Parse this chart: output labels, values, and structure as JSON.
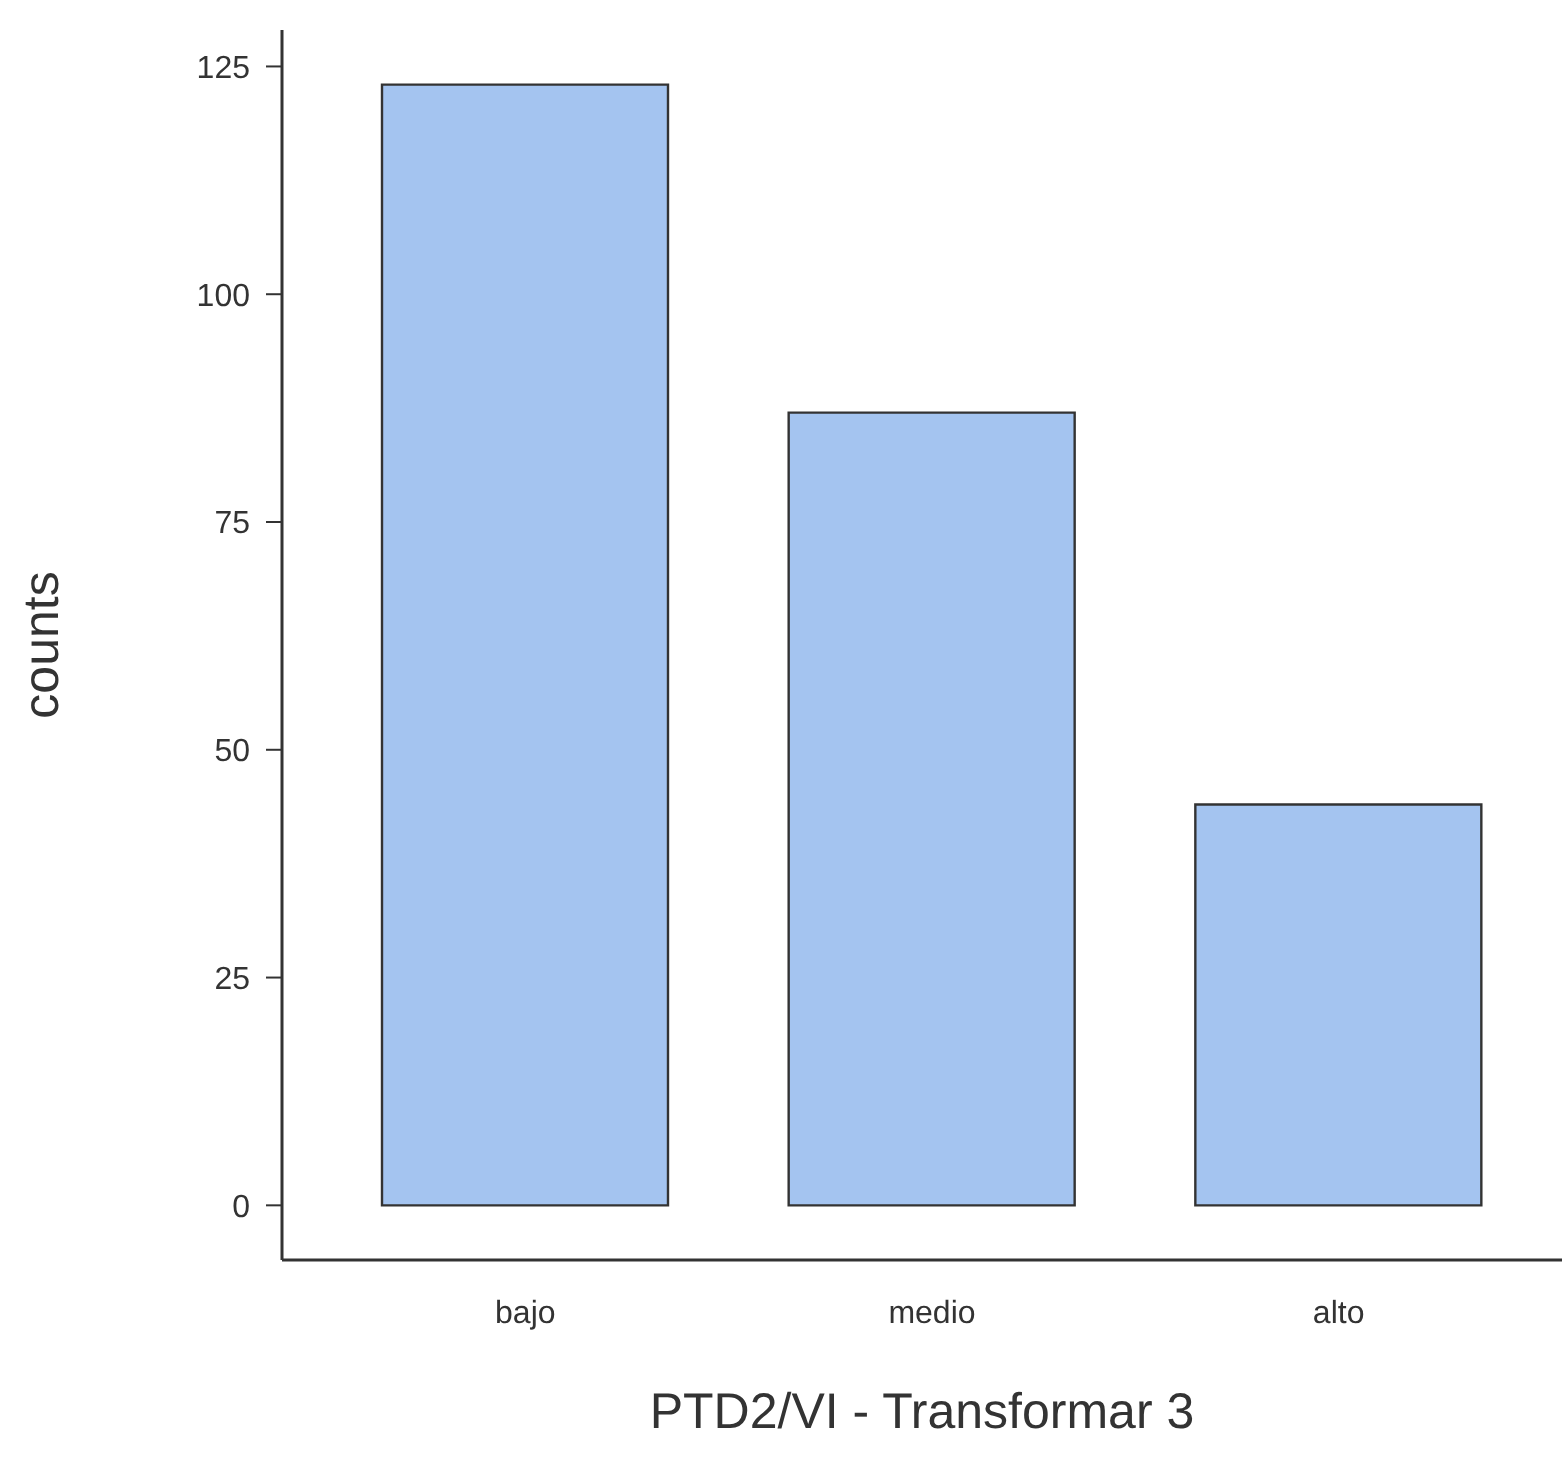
{
  "chart_data": {
    "type": "bar",
    "xlabel": "PTD2/VI - Transformar 3",
    "ylabel": "counts",
    "categories": [
      "bajo",
      "medio",
      "alto"
    ],
    "values": [
      123,
      87,
      44
    ],
    "color": "#a4c4f0",
    "ylim": [
      -6,
      129
    ],
    "yticks": [
      0,
      25,
      50,
      75,
      100,
      125
    ],
    "grid": false,
    "legend": false
  }
}
